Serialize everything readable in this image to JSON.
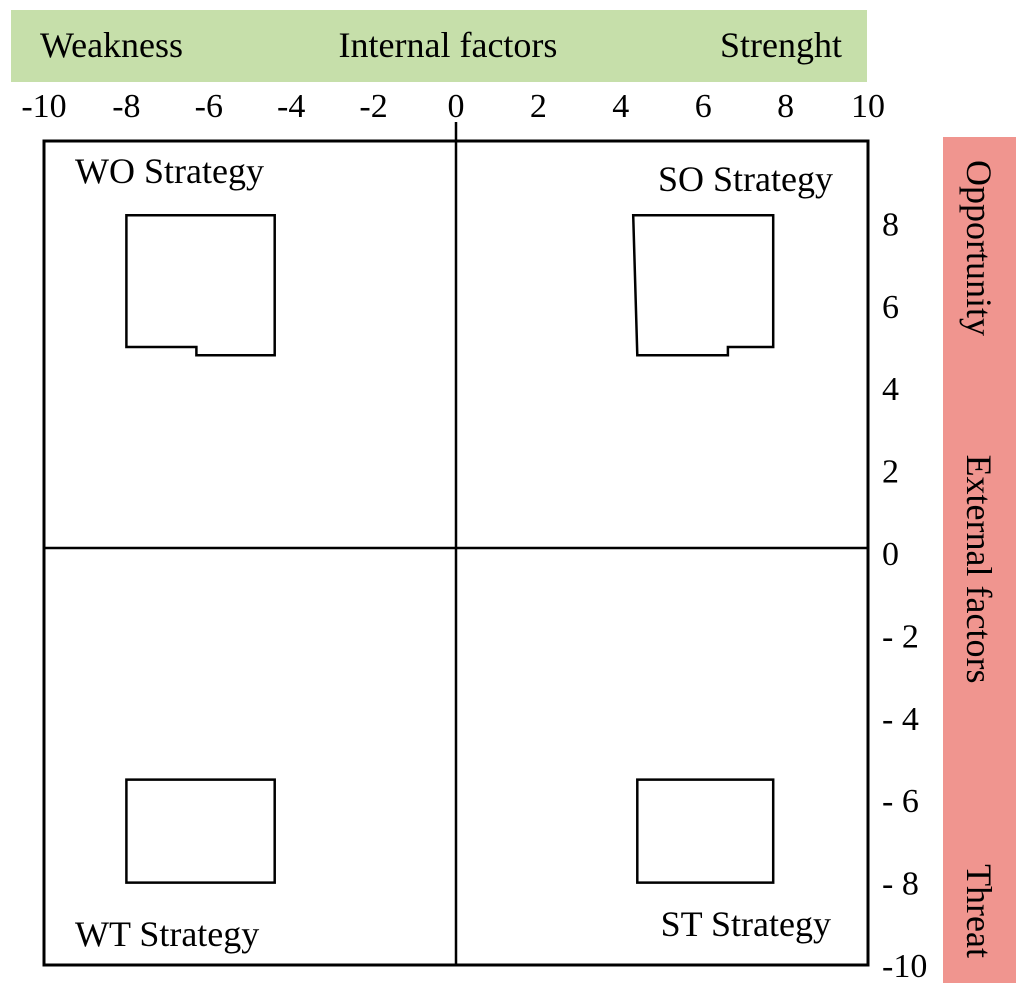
{
  "colors": {
    "top_band": "#c6dfaa",
    "side_band": "#f0958f",
    "line": "#000000"
  },
  "top_band": {
    "left": "Weakness",
    "center": "Internal factors",
    "right": "Strenght"
  },
  "side_band": {
    "top": "Opportunity",
    "middle": "External factors",
    "bottom": "Threat"
  },
  "chart_data": {
    "type": "quadrant",
    "xlim": [
      -10,
      10
    ],
    "ylim": [
      -10,
      10
    ],
    "x_ticks": [
      {
        "value": -10,
        "label": "-10"
      },
      {
        "value": -8,
        "label": "-8"
      },
      {
        "value": -6,
        "label": "-6"
      },
      {
        "value": -4,
        "label": "-4"
      },
      {
        "value": -2,
        "label": "-2"
      },
      {
        "value": 0,
        "label": "0"
      },
      {
        "value": 2,
        "label": "2"
      },
      {
        "value": 4,
        "label": "4"
      },
      {
        "value": 6,
        "label": "6"
      },
      {
        "value": 8,
        "label": "8"
      },
      {
        "value": 10,
        "label": "10"
      }
    ],
    "y_ticks": [
      {
        "value": 8,
        "label": "8"
      },
      {
        "value": 6,
        "label": "6"
      },
      {
        "value": 4,
        "label": "4"
      },
      {
        "value": 2,
        "label": "2"
      },
      {
        "value": 0,
        "label": "0"
      },
      {
        "value": -2,
        "label": "- 2"
      },
      {
        "value": -4,
        "label": "- 4"
      },
      {
        "value": -6,
        "label": "- 6"
      },
      {
        "value": -8,
        "label": "- 8"
      },
      {
        "value": -10,
        "label": "-10"
      }
    ],
    "quadrants": [
      {
        "label": "WO Strategy",
        "region": [
          [
            -8,
            8.2
          ],
          [
            -4.4,
            8.2
          ],
          [
            -4.4,
            4.8
          ],
          [
            -6.3,
            4.8
          ],
          [
            -6.3,
            5.0
          ],
          [
            -8,
            5.0
          ]
        ]
      },
      {
        "label": "SO Strategy",
        "region": [
          [
            4.3,
            8.2
          ],
          [
            7.7,
            8.2
          ],
          [
            7.7,
            5.0
          ],
          [
            6.6,
            5.0
          ],
          [
            6.6,
            4.8
          ],
          [
            4.4,
            4.8
          ]
        ]
      },
      {
        "label": "WT Strategy",
        "region": [
          [
            -8,
            -5.5
          ],
          [
            -4.4,
            -5.5
          ],
          [
            -4.4,
            -8
          ],
          [
            -8,
            -8
          ]
        ]
      },
      {
        "label": "ST Strategy",
        "region": [
          [
            4.4,
            -5.5
          ],
          [
            7.7,
            -5.5
          ],
          [
            7.7,
            -8
          ],
          [
            4.4,
            -8
          ]
        ]
      }
    ]
  }
}
